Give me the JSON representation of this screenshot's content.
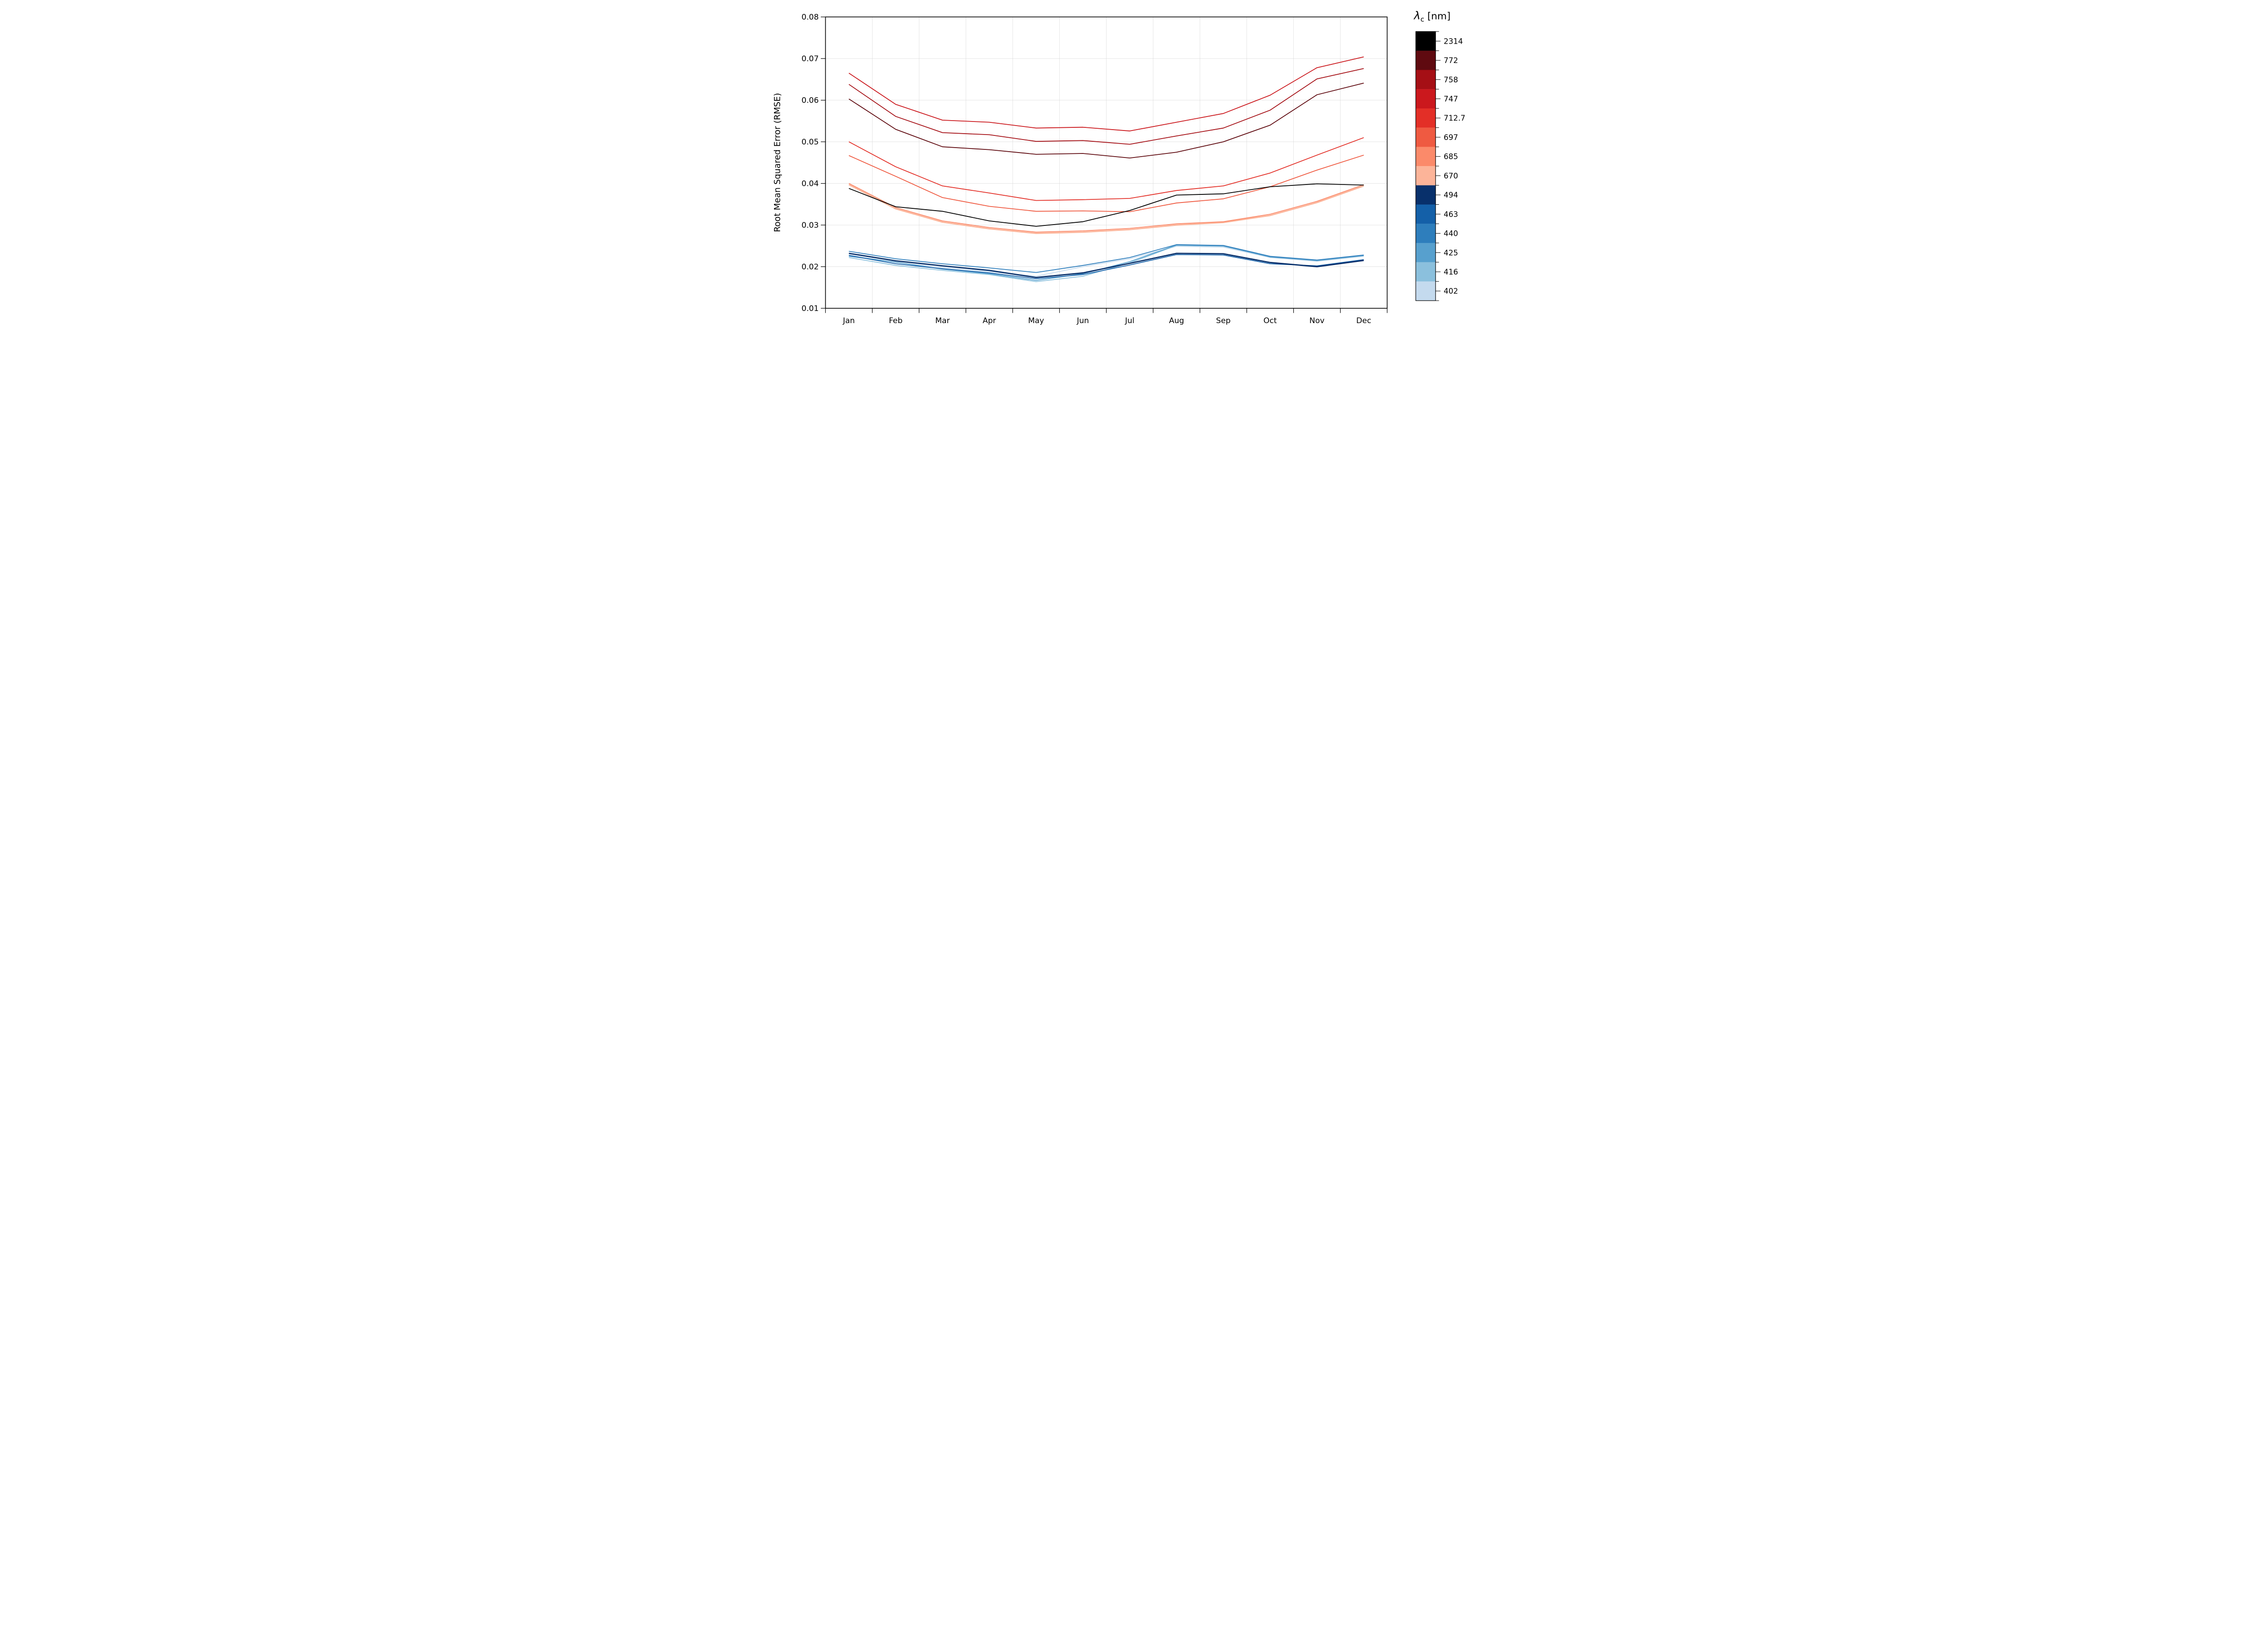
{
  "figure": {
    "ylabel": "Root Mean Squared Error (RMSE)"
  },
  "colorbar": {
    "title_symbol": "λ",
    "title_sub": "c",
    "title_unit": " [nm]",
    "entries_top_to_bottom": [
      {
        "label": "2314",
        "color": "#000000"
      },
      {
        "label": "772",
        "color": "#5f0a10"
      },
      {
        "label": "758",
        "color": "#a50f15"
      },
      {
        "label": "747",
        "color": "#cb181d"
      },
      {
        "label": "712.7",
        "color": "#e32f27"
      },
      {
        "label": "697",
        "color": "#ef5a41"
      },
      {
        "label": "685",
        "color": "#fb8a6a"
      },
      {
        "label": "670",
        "color": "#fcb499"
      },
      {
        "label": "494",
        "color": "#08306b"
      },
      {
        "label": "463",
        "color": "#1460a8"
      },
      {
        "label": "440",
        "color": "#2e7ebc"
      },
      {
        "label": "425",
        "color": "#57a0ce"
      },
      {
        "label": "416",
        "color": "#8bc0dd"
      },
      {
        "label": "402",
        "color": "#c4daee"
      }
    ]
  },
  "chart_data": {
    "type": "line",
    "title": "",
    "xlabel": "",
    "ylabel": "Root Mean Squared Error (RMSE)",
    "categories": [
      "Jan",
      "Feb",
      "Mar",
      "Apr",
      "May",
      "Jun",
      "Jul",
      "Aug",
      "Sep",
      "Oct",
      "Nov",
      "Dec"
    ],
    "ylim": [
      0.01,
      0.08
    ],
    "ytick_step": 0.01,
    "ytick_labels": [
      "0.01",
      "0.02",
      "0.03",
      "0.04",
      "0.05",
      "0.06",
      "0.07",
      "0.08"
    ],
    "grid": true,
    "legend_position": "right-colorbar",
    "legend_title": "λc [nm]",
    "series": [
      {
        "name": "402",
        "color": "#c4daee",
        "width": 9,
        "values": [
          0.0228,
          0.021,
          0.0198,
          0.0188,
          0.0177,
          0.02,
          0.0219,
          0.0249,
          0.0247,
          0.0222,
          0.0213,
          0.0225
        ]
      },
      {
        "name": "416",
        "color": "#8bc0dd",
        "width": 9,
        "values": [
          0.0222,
          0.0203,
          0.0191,
          0.0181,
          0.0164,
          0.0177,
          0.0209,
          0.0251,
          0.0249,
          0.0224,
          0.0214,
          0.0226
        ]
      },
      {
        "name": "425",
        "color": "#57a0ce",
        "width": 9,
        "values": [
          0.0225,
          0.0211,
          0.0194,
          0.0183,
          0.0167,
          0.0183,
          0.0212,
          0.0252,
          0.025,
          0.0223,
          0.0215,
          0.0227
        ]
      },
      {
        "name": "440",
        "color": "#2e7ebc",
        "width": 9,
        "values": [
          0.0237,
          0.0219,
          0.0207,
          0.0197,
          0.0186,
          0.0203,
          0.0222,
          0.0253,
          0.0251,
          0.0225,
          0.0216,
          0.0228
        ]
      },
      {
        "name": "463",
        "color": "#1460a8",
        "width": 9,
        "values": [
          0.0227,
          0.0207,
          0.0195,
          0.0185,
          0.0171,
          0.0181,
          0.0204,
          0.0229,
          0.0228,
          0.0207,
          0.0202,
          0.0217
        ]
      },
      {
        "name": "494",
        "color": "#08306b",
        "width": 14,
        "values": [
          0.0232,
          0.0214,
          0.0202,
          0.0191,
          0.0174,
          0.0185,
          0.0208,
          0.0232,
          0.0231,
          0.021,
          0.02,
          0.0215
        ]
      },
      {
        "name": "670",
        "color": "#fcb499",
        "width": 14,
        "values": [
          0.0397,
          0.0339,
          0.0307,
          0.0291,
          0.028,
          0.0283,
          0.0289,
          0.03,
          0.0306,
          0.0323,
          0.0354,
          0.0394
        ]
      },
      {
        "name": "685",
        "color": "#fb8a6a",
        "width": 9,
        "values": [
          0.04,
          0.0342,
          0.031,
          0.0294,
          0.0283,
          0.0286,
          0.0292,
          0.0303,
          0.0308,
          0.0326,
          0.0357,
          0.0397
        ]
      },
      {
        "name": "697",
        "color": "#ef5a41",
        "width": 9,
        "values": [
          0.0467,
          0.0417,
          0.0366,
          0.0345,
          0.0333,
          0.0334,
          0.0332,
          0.0353,
          0.0363,
          0.0392,
          0.0432,
          0.0468
        ]
      },
      {
        "name": "712.7",
        "color": "#e32f27",
        "width": 9,
        "values": [
          0.05,
          0.044,
          0.0394,
          0.0377,
          0.0359,
          0.0361,
          0.0364,
          0.0383,
          0.0394,
          0.0425,
          0.0468,
          0.051
        ]
      },
      {
        "name": "747",
        "color": "#cb181d",
        "width": 9,
        "values": [
          0.0665,
          0.059,
          0.0552,
          0.0547,
          0.0533,
          0.0535,
          0.0526,
          0.0547,
          0.0568,
          0.0612,
          0.0678,
          0.0704
        ]
      },
      {
        "name": "758",
        "color": "#a50f15",
        "width": 9,
        "values": [
          0.0638,
          0.0561,
          0.0522,
          0.0517,
          0.0501,
          0.0503,
          0.0494,
          0.0514,
          0.0533,
          0.0576,
          0.0651,
          0.0676
        ]
      },
      {
        "name": "772",
        "color": "#5f0a10",
        "width": 9,
        "values": [
          0.0603,
          0.053,
          0.0488,
          0.0481,
          0.047,
          0.0472,
          0.0461,
          0.0475,
          0.05,
          0.054,
          0.0613,
          0.0641
        ]
      },
      {
        "name": "2314",
        "color": "#000000",
        "width": 9,
        "values": [
          0.0388,
          0.0344,
          0.0333,
          0.031,
          0.0297,
          0.0308,
          0.0335,
          0.0372,
          0.0375,
          0.0392,
          0.0399,
          0.0396
        ]
      }
    ]
  }
}
